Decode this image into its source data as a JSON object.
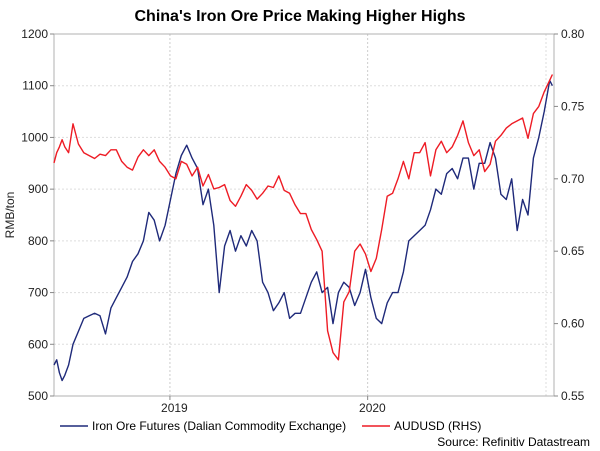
{
  "chart_data": {
    "type": "line",
    "title": "China's Iron Ore Price Making Higher Highs",
    "ylabel": "RMB/ton",
    "y2label": "",
    "ylim": [
      500,
      1200
    ],
    "y2lim": [
      0.55,
      0.8
    ],
    "yticks": [
      "500",
      "600",
      "700",
      "800",
      "900",
      "1000",
      "1100",
      "1200"
    ],
    "y2ticks": [
      "0.55",
      "0.60",
      "0.65",
      "0.70",
      "0.75",
      "0.80"
    ],
    "xlim": [
      "2018-06-01",
      "2020-12-10"
    ],
    "xticks": [
      {
        "date": "2019-01-01",
        "label": "2019"
      },
      {
        "date": "2020-01-01",
        "label": "2020"
      }
    ],
    "year_boundaries": [
      "2019-01-01",
      "2020-01-01"
    ],
    "grid": true,
    "legend": "bottom",
    "source": "Source: Refinitiv Datastream",
    "colors": {
      "iron": "#1f2a7a",
      "aud": "#ee1c25",
      "frame": "#b0b0b0",
      "grid": "#dddddd"
    },
    "series": [
      {
        "name": "Iron Ore Futures (Dalian Commodity Exchange)",
        "axis": "left",
        "color": "#1f2a7a",
        "dates": [
          "2018-06-01",
          "2018-06-06",
          "2018-06-11",
          "2018-06-16",
          "2018-06-21",
          "2018-06-28",
          "2018-07-06",
          "2018-07-16",
          "2018-07-26",
          "2018-08-05",
          "2018-08-15",
          "2018-08-25",
          "2018-09-04",
          "2018-09-14",
          "2018-09-24",
          "2018-10-04",
          "2018-10-14",
          "2018-10-24",
          "2018-11-03",
          "2018-11-13",
          "2018-11-23",
          "2018-12-03",
          "2018-12-13",
          "2018-12-23",
          "2019-01-02",
          "2019-01-12",
          "2019-01-22",
          "2019-02-01",
          "2019-02-11",
          "2019-02-21",
          "2019-03-03",
          "2019-03-13",
          "2019-03-23",
          "2019-04-02",
          "2019-04-12",
          "2019-04-22",
          "2019-05-02",
          "2019-05-12",
          "2019-05-22",
          "2019-06-01",
          "2019-06-11",
          "2019-06-21",
          "2019-07-01",
          "2019-07-11",
          "2019-07-21",
          "2019-07-31",
          "2019-08-10",
          "2019-08-20",
          "2019-08-30",
          "2019-09-09",
          "2019-09-19",
          "2019-09-29",
          "2019-10-09",
          "2019-10-19",
          "2019-10-29",
          "2019-11-08",
          "2019-11-18",
          "2019-11-28",
          "2019-12-08",
          "2019-12-18",
          "2019-12-28",
          "2020-01-07",
          "2020-01-17",
          "2020-01-27",
          "2020-02-06",
          "2020-02-16",
          "2020-02-26",
          "2020-03-07",
          "2020-03-17",
          "2020-03-27",
          "2020-04-06",
          "2020-04-16",
          "2020-04-26",
          "2020-05-06",
          "2020-05-16",
          "2020-05-26",
          "2020-06-05",
          "2020-06-15",
          "2020-06-25",
          "2020-07-05",
          "2020-07-15",
          "2020-07-25",
          "2020-08-04",
          "2020-08-14",
          "2020-08-24",
          "2020-09-03",
          "2020-09-13",
          "2020-09-23",
          "2020-10-03",
          "2020-10-13",
          "2020-10-23",
          "2020-11-02",
          "2020-11-12",
          "2020-11-22",
          "2020-12-02",
          "2020-12-07"
        ],
        "values": [
          560,
          570,
          545,
          530,
          540,
          560,
          600,
          625,
          650,
          655,
          660,
          655,
          620,
          670,
          690,
          710,
          730,
          760,
          775,
          800,
          855,
          840,
          800,
          830,
          880,
          930,
          965,
          985,
          960,
          940,
          870,
          900,
          830,
          700,
          790,
          820,
          780,
          810,
          790,
          820,
          800,
          720,
          700,
          665,
          680,
          700,
          650,
          660,
          660,
          690,
          720,
          740,
          700,
          710,
          640,
          700,
          720,
          710,
          675,
          700,
          745,
          690,
          650,
          640,
          680,
          700,
          700,
          740,
          800,
          810,
          820,
          830,
          860,
          900,
          890,
          930,
          940,
          920,
          960,
          960,
          900,
          950,
          950,
          990,
          960,
          890,
          880,
          920,
          820,
          880,
          850,
          960,
          1000,
          1050,
          1110,
          1100
        ]
      },
      {
        "name": "AUDUSD (RHS)",
        "axis": "right",
        "color": "#ee1c25",
        "dates": [
          "2018-06-01",
          "2018-06-06",
          "2018-06-11",
          "2018-06-16",
          "2018-06-21",
          "2018-06-28",
          "2018-07-06",
          "2018-07-16",
          "2018-07-26",
          "2018-08-05",
          "2018-08-15",
          "2018-08-25",
          "2018-09-04",
          "2018-09-14",
          "2018-09-24",
          "2018-10-04",
          "2018-10-14",
          "2018-10-24",
          "2018-11-03",
          "2018-11-13",
          "2018-11-23",
          "2018-12-03",
          "2018-12-13",
          "2018-12-23",
          "2019-01-02",
          "2019-01-12",
          "2019-01-22",
          "2019-02-01",
          "2019-02-11",
          "2019-02-21",
          "2019-03-03",
          "2019-03-13",
          "2019-03-23",
          "2019-04-02",
          "2019-04-12",
          "2019-04-22",
          "2019-05-02",
          "2019-05-12",
          "2019-05-22",
          "2019-06-01",
          "2019-06-11",
          "2019-06-21",
          "2019-07-01",
          "2019-07-11",
          "2019-07-21",
          "2019-07-31",
          "2019-08-10",
          "2019-08-20",
          "2019-08-30",
          "2019-09-09",
          "2019-09-19",
          "2019-09-29",
          "2019-10-09",
          "2019-10-19",
          "2019-10-29",
          "2019-11-08",
          "2019-11-18",
          "2019-11-28",
          "2019-12-08",
          "2019-12-18",
          "2019-12-28",
          "2020-01-07",
          "2020-01-17",
          "2020-01-27",
          "2020-02-06",
          "2020-02-16",
          "2020-02-26",
          "2020-03-07",
          "2020-03-17",
          "2020-03-27",
          "2020-04-06",
          "2020-04-16",
          "2020-04-26",
          "2020-05-06",
          "2020-05-16",
          "2020-05-26",
          "2020-06-05",
          "2020-06-15",
          "2020-06-25",
          "2020-07-05",
          "2020-07-15",
          "2020-07-25",
          "2020-08-04",
          "2020-08-14",
          "2020-08-24",
          "2020-09-03",
          "2020-09-13",
          "2020-09-23",
          "2020-10-03",
          "2020-10-13",
          "2020-10-23",
          "2020-11-02",
          "2020-11-12",
          "2020-11-22",
          "2020-12-02",
          "2020-12-07"
        ],
        "values": [
          0.711,
          0.718,
          0.722,
          0.727,
          0.722,
          0.718,
          0.738,
          0.724,
          0.718,
          0.716,
          0.714,
          0.717,
          0.716,
          0.72,
          0.72,
          0.712,
          0.708,
          0.706,
          0.715,
          0.72,
          0.716,
          0.72,
          0.712,
          0.708,
          0.702,
          0.7,
          0.712,
          0.71,
          0.702,
          0.708,
          0.695,
          0.703,
          0.693,
          0.694,
          0.696,
          0.685,
          0.681,
          0.688,
          0.696,
          0.692,
          0.686,
          0.69,
          0.695,
          0.694,
          0.702,
          0.692,
          0.69,
          0.682,
          0.676,
          0.676,
          0.665,
          0.658,
          0.65,
          0.595,
          0.58,
          0.575,
          0.615,
          0.622,
          0.65,
          0.655,
          0.648,
          0.636,
          0.645,
          0.665,
          0.688,
          0.69,
          0.7,
          0.712,
          0.7,
          0.718,
          0.718,
          0.725,
          0.702,
          0.72,
          0.726,
          0.718,
          0.722,
          0.73,
          0.74,
          0.725,
          0.716,
          0.72,
          0.705,
          0.71,
          0.726,
          0.73,
          0.735,
          0.738,
          0.74,
          0.742,
          0.728,
          0.745,
          0.75,
          0.76,
          0.768,
          0.772
        ]
      }
    ]
  }
}
